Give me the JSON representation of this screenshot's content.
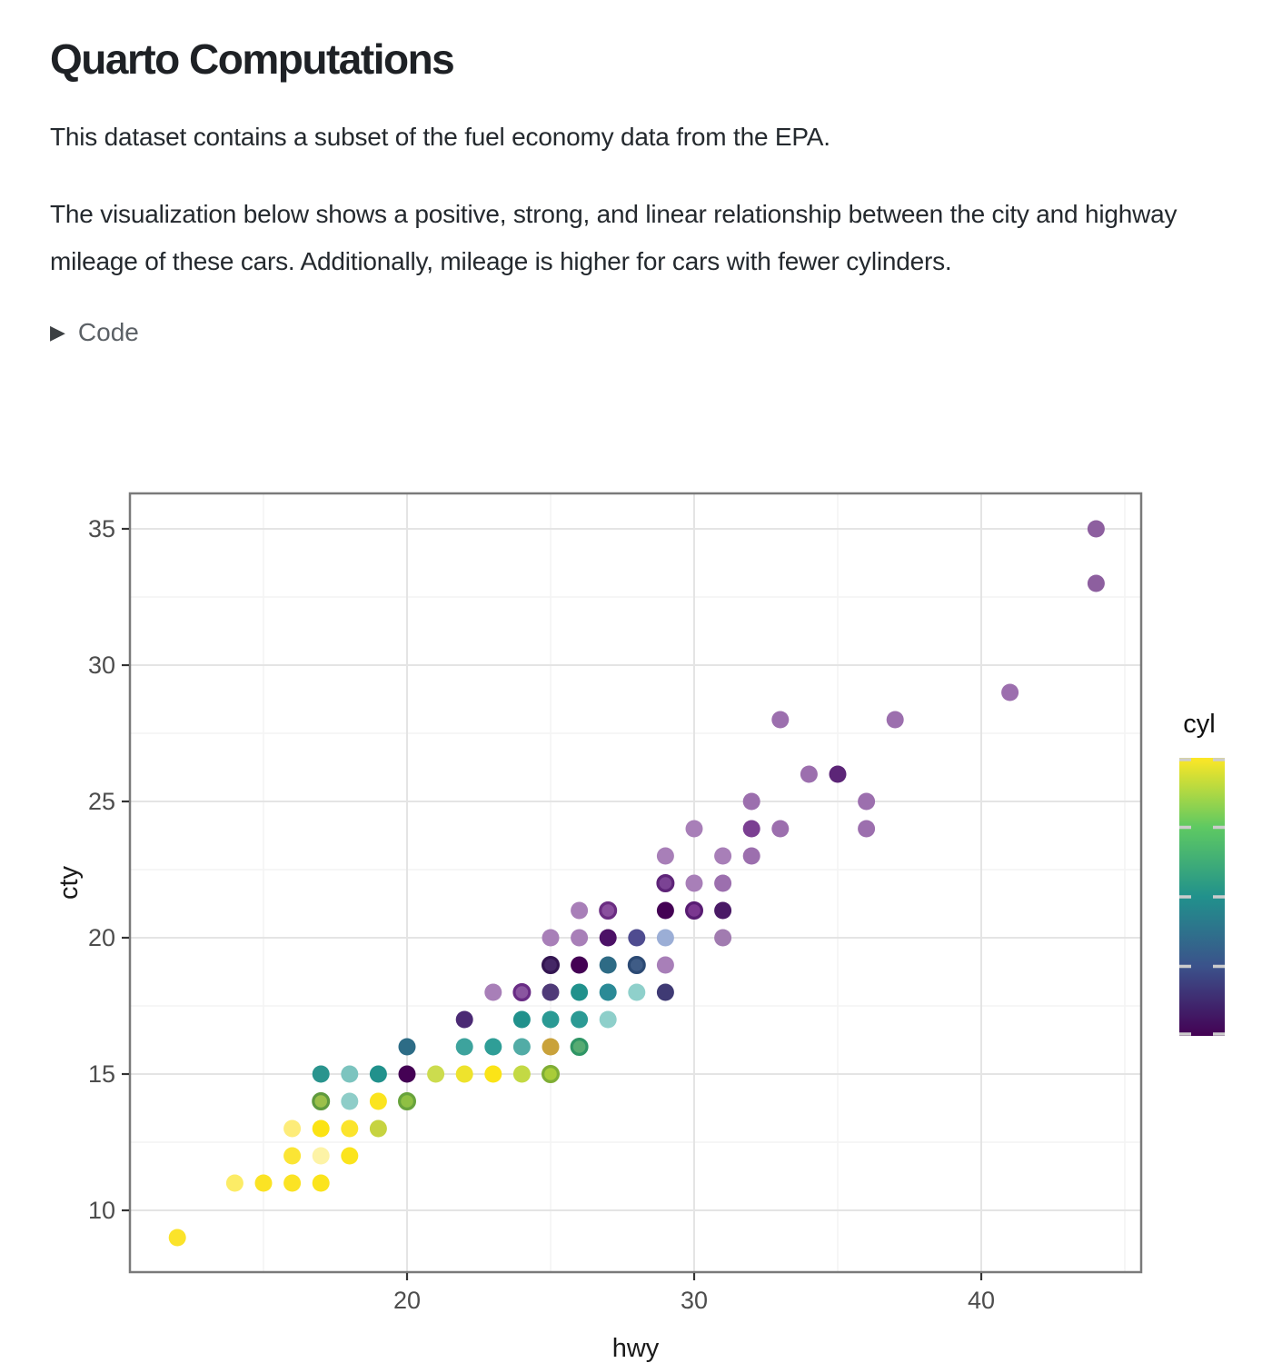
{
  "header": {
    "title": "Quarto Computations"
  },
  "paragraphs": {
    "p1": "This dataset contains a subset of the fuel economy data from the EPA.",
    "p2": "The visualization below shows a positive, strong, and linear relationship between the city and highway mileage of these cars. Additionally, mileage is higher for cars with fewer cylinders."
  },
  "code_toggle": {
    "icon": "▶",
    "label": "Code"
  },
  "colors": {
    "body_text": "#24292e",
    "muted_text": "#5c6166",
    "grid_major": "#e4e4e4",
    "grid_minor": "#f3f3f3",
    "panel_border": "#7a7a7a",
    "axis_tick_text": "#4d4d4d",
    "axis_title_text": "#1a1a1a",
    "legend_tick": "#cccccc",
    "divider": "#c8c8c8"
  },
  "chart_data": {
    "type": "scatter",
    "xlabel": "hwy",
    "ylabel": "cty",
    "x_ticks": [
      20,
      30,
      40
    ],
    "y_ticks": [
      10,
      15,
      20,
      25,
      30,
      35
    ],
    "x_minor": [
      15,
      25,
      35,
      45
    ],
    "y_minor": [
      12.5,
      17.5,
      22.5,
      27.5,
      32.5
    ],
    "xlim": [
      10.4,
      45.6
    ],
    "ylim": [
      7.7,
      36.3
    ],
    "grid": true,
    "legend": {
      "title": "cyl",
      "position": "right",
      "scale": "viridis",
      "min": 4,
      "max": 8,
      "ticks": [
        4,
        5,
        6,
        7,
        8
      ],
      "gradient_bottom_to_top": [
        "#440154",
        "#3b528b",
        "#21918c",
        "#5ec962",
        "#fde725"
      ]
    },
    "points_format": [
      "hwy",
      "cty",
      "fill",
      "ring_stroke"
    ],
    "points": [
      [
        12,
        9,
        "#fbe32a",
        null
      ],
      [
        14,
        11,
        "#fcec66",
        null
      ],
      [
        15,
        11,
        "#fbe324",
        null
      ],
      [
        16,
        11,
        "#fbe324",
        null
      ],
      [
        17,
        11,
        "#fbe41c",
        null
      ],
      [
        16,
        12,
        "#fbe534",
        null
      ],
      [
        17,
        12,
        "#fdf3a6",
        null
      ],
      [
        18,
        12,
        "#fbe41c",
        null
      ],
      [
        16,
        13,
        "#fdec79",
        null
      ],
      [
        17,
        13,
        "#fbe313",
        null
      ],
      [
        18,
        13,
        "#fbe42c",
        null
      ],
      [
        19,
        13,
        "#c6d340",
        null
      ],
      [
        17,
        14,
        "#9cc04a",
        "#5f9a3e"
      ],
      [
        18,
        14,
        "#8ecdc8",
        null
      ],
      [
        19,
        14,
        "#fbe41f",
        null
      ],
      [
        20,
        14,
        "#8fc043",
        "#68a33c"
      ],
      [
        17,
        15,
        "#2a948e",
        null
      ],
      [
        18,
        15,
        "#7cc4bf",
        null
      ],
      [
        19,
        15,
        "#21918c",
        null
      ],
      [
        20,
        15,
        "#440154",
        null
      ],
      [
        21,
        15,
        "#ccdc4e",
        null
      ],
      [
        22,
        15,
        "#eee32c",
        null
      ],
      [
        23,
        15,
        "#fbe417",
        null
      ],
      [
        24,
        15,
        "#c3d944",
        null
      ],
      [
        25,
        15,
        "#a9cc3a",
        "#7fae35"
      ],
      [
        20,
        16,
        "#2d6c86",
        null
      ],
      [
        22,
        16,
        "#3da39d",
        null
      ],
      [
        23,
        16,
        "#2f9e97",
        null
      ],
      [
        24,
        16,
        "#52aca6",
        null
      ],
      [
        25,
        16,
        "#c9a23b",
        null
      ],
      [
        26,
        16,
        "#57ab72",
        "#2f9565"
      ],
      [
        22,
        17,
        "#4b2a74",
        null
      ],
      [
        24,
        17,
        "#21918c",
        null
      ],
      [
        25,
        17,
        "#2b9a94",
        null
      ],
      [
        26,
        17,
        "#2b9a94",
        null
      ],
      [
        27,
        17,
        "#8ecfca",
        null
      ],
      [
        23,
        18,
        "#a87fb8",
        null
      ],
      [
        24,
        18,
        "#8a56a0",
        "#692c85"
      ],
      [
        25,
        18,
        "#4f3a78",
        null
      ],
      [
        26,
        18,
        "#21918c",
        null
      ],
      [
        27,
        18,
        "#2b8a96",
        null
      ],
      [
        28,
        18,
        "#8fd0cb",
        null
      ],
      [
        29,
        18,
        "#3f3a74",
        null
      ],
      [
        25,
        19,
        "#452766",
        "#331551"
      ],
      [
        26,
        19,
        "#440154",
        null
      ],
      [
        27,
        19,
        "#2e6b85",
        null
      ],
      [
        28,
        19,
        "#3f5c86",
        "#2c4a74"
      ],
      [
        29,
        19,
        "#a87fb8",
        null
      ],
      [
        25,
        20,
        "#a87fb8",
        null
      ],
      [
        26,
        20,
        "#a87fb8",
        null
      ],
      [
        27,
        20,
        "#4c1166",
        null
      ],
      [
        28,
        20,
        "#4f4c90",
        null
      ],
      [
        29,
        20,
        "#9baed6",
        null
      ],
      [
        31,
        20,
        "#a17bb0",
        null
      ],
      [
        26,
        21,
        "#a87fb8",
        null
      ],
      [
        27,
        21,
        "#8a4f9e",
        "#6b2d82"
      ],
      [
        29,
        21,
        "#440154",
        null
      ],
      [
        30,
        21,
        "#7b3790",
        "#581c72"
      ],
      [
        31,
        21,
        "#4a1a66",
        null
      ],
      [
        29,
        22,
        "#7b4394",
        "#5e2478"
      ],
      [
        30,
        22,
        "#a87fb8",
        null
      ],
      [
        31,
        22,
        "#9c6fae",
        null
      ],
      [
        29,
        23,
        "#a87fb8",
        null
      ],
      [
        31,
        23,
        "#a87fb8",
        null
      ],
      [
        32,
        23,
        "#9c6fae",
        null
      ],
      [
        30,
        24,
        "#a87fb8",
        null
      ],
      [
        32,
        24,
        "#7b3f92",
        null
      ],
      [
        33,
        24,
        "#9c6fae",
        null
      ],
      [
        36,
        24,
        "#9c6fae",
        null
      ],
      [
        32,
        25,
        "#9c6fae",
        null
      ],
      [
        36,
        25,
        "#9c6fae",
        null
      ],
      [
        34,
        26,
        "#9c6fae",
        null
      ],
      [
        35,
        26,
        "#5c2577",
        null
      ],
      [
        33,
        28,
        "#9c6fae",
        null
      ],
      [
        37,
        28,
        "#9c6fae",
        null
      ],
      [
        41,
        29,
        "#9c6fae",
        null
      ],
      [
        44,
        33,
        "#8d5f9f",
        null
      ],
      [
        44,
        35,
        "#8d5f9f",
        null
      ]
    ]
  }
}
